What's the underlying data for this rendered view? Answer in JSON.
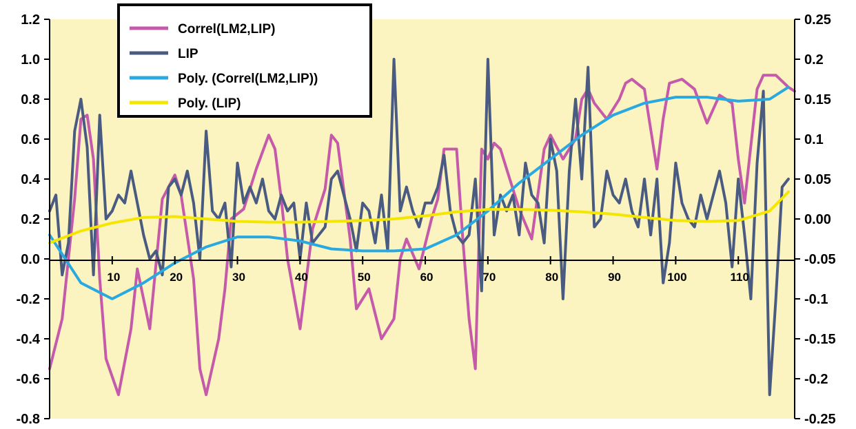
{
  "chart_data": {
    "type": "line",
    "title": "",
    "xlabel": "",
    "ylabel": "",
    "ylim": [
      -0.8,
      1.2
    ],
    "y2lim": [
      -0.25,
      0.25
    ],
    "xlim": [
      0,
      119
    ],
    "x_ticks": [
      10,
      20,
      30,
      40,
      50,
      60,
      70,
      80,
      90,
      100,
      110
    ],
    "y_ticks": [
      "1.2",
      "1.0",
      "0.8",
      "0.6",
      "0.4",
      "0.2",
      "0.0",
      "-0.2",
      "-0.4",
      "-0.6",
      "-0.8"
    ],
    "y2_ticks": [
      "0.25",
      "0.2",
      "0.15",
      "0.1",
      "0.05",
      "0.00",
      "-0.05",
      "-0.1",
      "-0.15",
      "-0.2",
      "-0.25"
    ],
    "plot_background": "#fbf3c0",
    "legend_position": "top-left",
    "series": [
      {
        "name": "Correl(LM2,LIP)",
        "axis": "left",
        "color": "#c65aaa",
        "x": [
          0,
          2,
          4,
          5,
          6,
          7,
          8,
          9,
          11,
          13,
          14,
          16,
          18,
          20,
          21,
          23,
          24,
          25,
          27,
          28,
          29,
          31,
          33,
          35,
          36,
          37,
          38,
          40,
          42,
          44,
          45,
          46,
          48,
          49,
          51,
          53,
          55,
          56,
          57,
          59,
          61,
          62,
          63,
          65,
          66,
          67,
          68,
          69,
          70,
          71,
          72,
          73,
          75,
          77,
          79,
          80,
          82,
          84,
          85,
          86,
          87,
          89,
          91,
          92,
          93,
          95,
          97,
          98,
          99,
          101,
          103,
          105,
          107,
          109,
          110,
          111,
          113,
          114,
          116,
          118,
          119
        ],
        "values": [
          -0.55,
          -0.3,
          0.3,
          0.7,
          0.72,
          0.5,
          -0.1,
          -0.5,
          -0.68,
          -0.35,
          -0.05,
          -0.35,
          0.3,
          0.42,
          0.32,
          -0.1,
          -0.55,
          -0.68,
          -0.4,
          -0.15,
          0.2,
          0.25,
          0.45,
          0.62,
          0.55,
          0.3,
          0.0,
          -0.35,
          0.15,
          0.35,
          0.62,
          0.58,
          0.1,
          -0.25,
          -0.15,
          -0.4,
          -0.3,
          0.0,
          0.1,
          -0.05,
          0.2,
          0.3,
          0.55,
          0.55,
          0.1,
          -0.3,
          -0.55,
          0.55,
          0.5,
          0.58,
          0.55,
          0.45,
          0.25,
          0.1,
          0.55,
          0.62,
          0.5,
          0.6,
          0.8,
          0.85,
          0.78,
          0.7,
          0.8,
          0.88,
          0.9,
          0.85,
          0.45,
          0.7,
          0.88,
          0.9,
          0.85,
          0.68,
          0.82,
          0.78,
          0.5,
          0.28,
          0.85,
          0.92,
          0.92,
          0.86,
          0.84
        ]
      },
      {
        "name": "LIP",
        "axis": "right",
        "color": "#4a5b82",
        "x": [
          0,
          1,
          2,
          3,
          4,
          5,
          6,
          7,
          8,
          9,
          10,
          11,
          12,
          13,
          14,
          15,
          16,
          17,
          18,
          19,
          20,
          21,
          22,
          23,
          24,
          25,
          26,
          27,
          28,
          29,
          30,
          31,
          32,
          33,
          34,
          35,
          36,
          37,
          38,
          39,
          40,
          41,
          42,
          43,
          44,
          45,
          46,
          47,
          48,
          49,
          50,
          51,
          52,
          53,
          54,
          55,
          56,
          57,
          58,
          59,
          60,
          61,
          62,
          63,
          64,
          65,
          66,
          67,
          68,
          69,
          70,
          71,
          72,
          73,
          74,
          75,
          76,
          77,
          78,
          79,
          80,
          81,
          82,
          83,
          84,
          85,
          86,
          87,
          88,
          89,
          90,
          91,
          92,
          93,
          94,
          95,
          96,
          97,
          98,
          99,
          100,
          101,
          102,
          103,
          104,
          105,
          106,
          107,
          108,
          109,
          110,
          111,
          112,
          113,
          114,
          115,
          116,
          117,
          118
        ],
        "values": [
          0.01,
          0.03,
          -0.07,
          -0.03,
          0.11,
          0.15,
          0.09,
          -0.07,
          0.13,
          0.0,
          0.01,
          0.03,
          0.02,
          0.06,
          0.02,
          -0.02,
          -0.05,
          -0.04,
          -0.07,
          0.04,
          0.05,
          0.03,
          0.06,
          0.02,
          -0.05,
          0.11,
          0.01,
          0.0,
          0.02,
          -0.06,
          0.07,
          0.02,
          0.04,
          0.02,
          0.05,
          0.01,
          0.0,
          0.03,
          0.01,
          0.02,
          -0.05,
          0.02,
          -0.03,
          -0.02,
          -0.01,
          0.05,
          0.06,
          0.03,
          0.0,
          -0.04,
          0.02,
          0.01,
          -0.03,
          0.03,
          -0.04,
          0.2,
          0.01,
          0.04,
          0.01,
          -0.01,
          0.02,
          0.02,
          0.04,
          0.08,
          0.01,
          -0.02,
          -0.03,
          -0.02,
          0.05,
          -0.09,
          0.2,
          -0.02,
          0.03,
          0.01,
          0.03,
          -0.02,
          0.07,
          0.03,
          0.02,
          -0.03,
          0.1,
          0.06,
          -0.1,
          0.06,
          0.15,
          0.05,
          0.19,
          -0.01,
          0.0,
          0.06,
          0.03,
          0.02,
          0.05,
          0.01,
          -0.01,
          0.05,
          -0.02,
          0.05,
          -0.08,
          -0.03,
          0.07,
          0.02,
          0.0,
          -0.01,
          0.03,
          0.0,
          0.03,
          0.06,
          0.02,
          -0.06,
          0.05,
          -0.02,
          -0.1,
          0.07,
          0.16,
          -0.22,
          -0.1,
          0.04,
          0.05
        ]
      },
      {
        "name": "Poly. (Correl(LM2,LIP))",
        "axis": "left",
        "color": "#29a9df",
        "x": [
          0,
          5,
          10,
          15,
          20,
          25,
          30,
          35,
          40,
          45,
          50,
          55,
          60,
          65,
          70,
          75,
          80,
          85,
          90,
          95,
          100,
          105,
          110,
          115,
          118
        ],
        "values": [
          0.12,
          -0.12,
          -0.2,
          -0.12,
          -0.02,
          0.06,
          0.11,
          0.11,
          0.09,
          0.05,
          0.04,
          0.04,
          0.05,
          0.12,
          0.24,
          0.38,
          0.5,
          0.62,
          0.72,
          0.78,
          0.81,
          0.81,
          0.79,
          0.8,
          0.86
        ]
      },
      {
        "name": "Poly. (LIP)",
        "axis": "right",
        "color": "#f5e600",
        "x": [
          0,
          5,
          10,
          15,
          20,
          25,
          30,
          35,
          40,
          45,
          50,
          55,
          60,
          65,
          70,
          75,
          80,
          85,
          90,
          95,
          100,
          105,
          110,
          115,
          118
        ],
        "values": [
          -0.03,
          -0.015,
          -0.005,
          0.002,
          0.003,
          0.0,
          -0.003,
          -0.004,
          -0.004,
          -0.003,
          -0.002,
          0.0,
          0.004,
          0.009,
          0.012,
          0.012,
          0.011,
          0.009,
          0.006,
          0.002,
          -0.002,
          -0.003,
          -0.002,
          0.01,
          0.034
        ]
      }
    ]
  }
}
